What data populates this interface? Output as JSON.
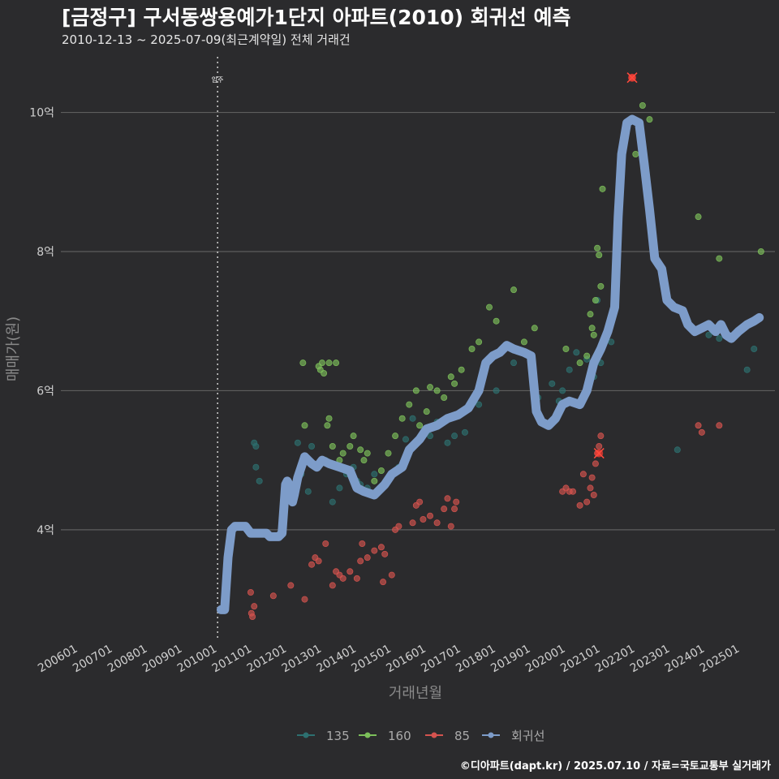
{
  "title": "[금정구] 구서동쌍용예가1단지 아파트(2010) 회귀선 예측",
  "subtitle": "2010-12-13 ~ 2025-07-09(최근계약일) 전체 거래건",
  "caption": "©디아파트(dapt.kr) / 2025.07.10 / 자료=국토교통부 실거래가",
  "chart_data": {
    "type": "scatter",
    "xlabel": "거래년월",
    "ylabel": "매매가(원)",
    "x_ticks": [
      "200601",
      "200701",
      "200801",
      "200901",
      "201001",
      "201101",
      "201201",
      "201301",
      "201401",
      "201501",
      "201601",
      "201701",
      "201801",
      "201901",
      "202001",
      "202101",
      "202201",
      "202301",
      "202401",
      "202501"
    ],
    "y_ticks": [
      {
        "v": 4,
        "label": "4억"
      },
      {
        "v": 6,
        "label": "6억"
      },
      {
        "v": 8,
        "label": "8억"
      },
      {
        "v": 10,
        "label": "10억"
      }
    ],
    "xlim": [
      2005.5,
      2026.0
    ],
    "ylim": [
      2.4,
      10.8
    ],
    "grid": "horizontal",
    "annotation": {
      "x": 2010.0,
      "label": "입주"
    },
    "legend_position": "bottom",
    "legend": [
      {
        "name": "135",
        "color": "#2d7070"
      },
      {
        "name": "160",
        "color": "#7cbf5a"
      },
      {
        "name": "85",
        "color": "#d4534f"
      },
      {
        "name": "회귀선",
        "color": "#7d9cc9"
      }
    ],
    "series": [
      {
        "name": "135",
        "color": "#2d7070",
        "points": [
          [
            2011.05,
            5.25
          ],
          [
            2011.1,
            5.2
          ],
          [
            2011.1,
            4.9
          ],
          [
            2011.2,
            4.7
          ],
          [
            2012.3,
            5.25
          ],
          [
            2012.4,
            4.8
          ],
          [
            2012.6,
            4.55
          ],
          [
            2012.7,
            5.2
          ],
          [
            2013.1,
            5.0
          ],
          [
            2013.3,
            4.4
          ],
          [
            2013.5,
            4.6
          ],
          [
            2013.7,
            4.8
          ],
          [
            2013.9,
            4.9
          ],
          [
            2014.0,
            4.7
          ],
          [
            2014.1,
            4.65
          ],
          [
            2014.3,
            4.6
          ],
          [
            2014.5,
            4.8
          ],
          [
            2014.7,
            4.6
          ],
          [
            2015.2,
            4.9
          ],
          [
            2015.4,
            5.3
          ],
          [
            2015.6,
            5.6
          ],
          [
            2016.1,
            5.35
          ],
          [
            2016.3,
            5.55
          ],
          [
            2016.6,
            5.25
          ],
          [
            2016.8,
            5.35
          ],
          [
            2017.1,
            5.4
          ],
          [
            2017.5,
            5.8
          ],
          [
            2018.0,
            6.0
          ],
          [
            2018.5,
            6.4
          ],
          [
            2019.2,
            5.9
          ],
          [
            2019.6,
            6.1
          ],
          [
            2019.8,
            5.85
          ],
          [
            2019.9,
            6.0
          ],
          [
            2020.1,
            6.3
          ],
          [
            2020.3,
            6.55
          ],
          [
            2020.6,
            6.45
          ],
          [
            2020.8,
            6.2
          ],
          [
            2020.9,
            7.3
          ],
          [
            2021.0,
            6.4
          ],
          [
            2021.3,
            6.7
          ],
          [
            2023.2,
            5.15
          ],
          [
            2024.1,
            6.8
          ],
          [
            2024.4,
            6.75
          ],
          [
            2025.2,
            6.3
          ],
          [
            2025.4,
            6.6
          ]
        ]
      },
      {
        "name": "160",
        "color": "#7cbf5a",
        "points": [
          [
            2012.45,
            6.4
          ],
          [
            2012.5,
            5.5
          ],
          [
            2012.9,
            6.35
          ],
          [
            2012.95,
            6.3
          ],
          [
            2013.0,
            6.4
          ],
          [
            2013.05,
            6.25
          ],
          [
            2013.2,
            6.4
          ],
          [
            2013.4,
            6.4
          ],
          [
            2013.2,
            5.6
          ],
          [
            2013.15,
            5.5
          ],
          [
            2013.3,
            5.2
          ],
          [
            2013.5,
            5.0
          ],
          [
            2013.6,
            5.1
          ],
          [
            2013.8,
            5.2
          ],
          [
            2013.9,
            5.35
          ],
          [
            2014.1,
            5.15
          ],
          [
            2014.2,
            5.0
          ],
          [
            2014.3,
            5.1
          ],
          [
            2014.5,
            4.7
          ],
          [
            2014.7,
            4.85
          ],
          [
            2014.9,
            5.1
          ],
          [
            2015.1,
            5.35
          ],
          [
            2015.3,
            5.6
          ],
          [
            2015.5,
            5.8
          ],
          [
            2015.7,
            6.0
          ],
          [
            2015.8,
            5.5
          ],
          [
            2016.0,
            5.7
          ],
          [
            2016.1,
            6.05
          ],
          [
            2016.3,
            6.0
          ],
          [
            2016.5,
            5.9
          ],
          [
            2016.7,
            6.2
          ],
          [
            2016.8,
            6.1
          ],
          [
            2017.0,
            6.3
          ],
          [
            2017.3,
            6.6
          ],
          [
            2017.5,
            6.7
          ],
          [
            2017.8,
            7.2
          ],
          [
            2018.0,
            7.0
          ],
          [
            2018.2,
            6.6
          ],
          [
            2018.5,
            7.45
          ],
          [
            2018.8,
            6.7
          ],
          [
            2019.1,
            6.9
          ],
          [
            2020.0,
            6.6
          ],
          [
            2020.4,
            6.4
          ],
          [
            2020.6,
            6.5
          ],
          [
            2020.7,
            7.1
          ],
          [
            2020.75,
            6.9
          ],
          [
            2020.8,
            6.8
          ],
          [
            2020.85,
            7.3
          ],
          [
            2020.9,
            8.05
          ],
          [
            2020.95,
            7.95
          ],
          [
            2021.0,
            7.5
          ],
          [
            2021.05,
            8.9
          ],
          [
            2022.0,
            9.4
          ],
          [
            2022.2,
            10.1
          ],
          [
            2022.4,
            9.9
          ],
          [
            2023.8,
            8.5
          ],
          [
            2024.4,
            7.9
          ],
          [
            2025.6,
            8.0
          ]
        ]
      },
      {
        "name": "85",
        "color": "#d4534f",
        "points": [
          [
            2010.95,
            3.1
          ],
          [
            2010.97,
            2.8
          ],
          [
            2011.0,
            2.75
          ],
          [
            2011.05,
            2.9
          ],
          [
            2011.6,
            3.05
          ],
          [
            2012.1,
            3.2
          ],
          [
            2012.5,
            3.0
          ],
          [
            2012.7,
            3.5
          ],
          [
            2012.8,
            3.6
          ],
          [
            2012.9,
            3.55
          ],
          [
            2013.1,
            3.8
          ],
          [
            2013.3,
            3.2
          ],
          [
            2013.4,
            3.4
          ],
          [
            2013.5,
            3.35
          ],
          [
            2013.6,
            3.3
          ],
          [
            2013.8,
            3.4
          ],
          [
            2014.0,
            3.3
          ],
          [
            2014.1,
            3.55
          ],
          [
            2014.15,
            3.8
          ],
          [
            2014.3,
            3.6
          ],
          [
            2014.5,
            3.7
          ],
          [
            2014.7,
            3.75
          ],
          [
            2014.75,
            3.25
          ],
          [
            2014.8,
            3.65
          ],
          [
            2015.0,
            3.35
          ],
          [
            2015.1,
            4.0
          ],
          [
            2015.2,
            4.05
          ],
          [
            2015.6,
            4.1
          ],
          [
            2015.7,
            4.35
          ],
          [
            2015.8,
            4.4
          ],
          [
            2015.9,
            4.15
          ],
          [
            2016.1,
            4.2
          ],
          [
            2016.3,
            4.1
          ],
          [
            2016.5,
            4.3
          ],
          [
            2016.6,
            4.45
          ],
          [
            2016.7,
            4.05
          ],
          [
            2016.8,
            4.3
          ],
          [
            2016.85,
            4.4
          ],
          [
            2019.9,
            4.55
          ],
          [
            2020.0,
            4.6
          ],
          [
            2020.1,
            4.55
          ],
          [
            2020.2,
            4.55
          ],
          [
            2020.4,
            4.35
          ],
          [
            2020.5,
            4.8
          ],
          [
            2020.6,
            4.4
          ],
          [
            2020.7,
            4.6
          ],
          [
            2020.75,
            4.75
          ],
          [
            2020.8,
            4.5
          ],
          [
            2020.85,
            4.95
          ],
          [
            2020.9,
            5.1
          ],
          [
            2020.95,
            5.2
          ],
          [
            2021.0,
            5.35
          ],
          [
            2021.9,
            10.5
          ],
          [
            2023.8,
            5.5
          ],
          [
            2023.9,
            5.4
          ],
          [
            2024.4,
            5.5
          ]
        ]
      }
    ],
    "highlights": [
      [
        2020.95,
        5.1
      ],
      [
        2021.9,
        10.5
      ]
    ],
    "regression": [
      [
        2010.1,
        2.85
      ],
      [
        2010.2,
        2.85
      ],
      [
        2010.3,
        3.6
      ],
      [
        2010.4,
        4.0
      ],
      [
        2010.5,
        4.05
      ],
      [
        2010.8,
        4.05
      ],
      [
        2010.95,
        3.95
      ],
      [
        2011.4,
        3.95
      ],
      [
        2011.5,
        3.9
      ],
      [
        2011.75,
        3.9
      ],
      [
        2011.85,
        3.95
      ],
      [
        2011.95,
        4.65
      ],
      [
        2012.0,
        4.7
      ],
      [
        2012.1,
        4.6
      ],
      [
        2012.15,
        4.4
      ],
      [
        2012.2,
        4.5
      ],
      [
        2012.3,
        4.75
      ],
      [
        2012.5,
        5.05
      ],
      [
        2012.7,
        4.95
      ],
      [
        2012.85,
        4.9
      ],
      [
        2013.0,
        5.0
      ],
      [
        2013.2,
        4.95
      ],
      [
        2013.5,
        4.9
      ],
      [
        2013.8,
        4.85
      ],
      [
        2014.0,
        4.6
      ],
      [
        2014.2,
        4.55
      ],
      [
        2014.5,
        4.5
      ],
      [
        2014.8,
        4.65
      ],
      [
        2015.0,
        4.8
      ],
      [
        2015.3,
        4.9
      ],
      [
        2015.5,
        5.15
      ],
      [
        2015.8,
        5.3
      ],
      [
        2016.0,
        5.45
      ],
      [
        2016.3,
        5.5
      ],
      [
        2016.6,
        5.6
      ],
      [
        2016.9,
        5.65
      ],
      [
        2017.2,
        5.75
      ],
      [
        2017.5,
        6.0
      ],
      [
        2017.7,
        6.4
      ],
      [
        2017.9,
        6.5
      ],
      [
        2018.1,
        6.55
      ],
      [
        2018.3,
        6.65
      ],
      [
        2018.5,
        6.6
      ],
      [
        2018.8,
        6.55
      ],
      [
        2019.0,
        6.5
      ],
      [
        2019.15,
        5.7
      ],
      [
        2019.3,
        5.55
      ],
      [
        2019.5,
        5.5
      ],
      [
        2019.7,
        5.6
      ],
      [
        2019.9,
        5.8
      ],
      [
        2020.1,
        5.85
      ],
      [
        2020.4,
        5.8
      ],
      [
        2020.6,
        6.0
      ],
      [
        2020.8,
        6.4
      ],
      [
        2021.0,
        6.6
      ],
      [
        2021.2,
        6.85
      ],
      [
        2021.4,
        7.2
      ],
      [
        2021.5,
        8.5
      ],
      [
        2021.6,
        9.4
      ],
      [
        2021.75,
        9.85
      ],
      [
        2021.9,
        9.9
      ],
      [
        2022.1,
        9.85
      ],
      [
        2022.25,
        9.25
      ],
      [
        2022.4,
        8.6
      ],
      [
        2022.55,
        7.9
      ],
      [
        2022.75,
        7.75
      ],
      [
        2022.9,
        7.3
      ],
      [
        2023.1,
        7.2
      ],
      [
        2023.35,
        7.15
      ],
      [
        2023.5,
        6.95
      ],
      [
        2023.7,
        6.85
      ],
      [
        2023.9,
        6.9
      ],
      [
        2024.1,
        6.95
      ],
      [
        2024.3,
        6.85
      ],
      [
        2024.45,
        6.95
      ],
      [
        2024.6,
        6.8
      ],
      [
        2024.75,
        6.75
      ],
      [
        2024.95,
        6.85
      ],
      [
        2025.2,
        6.95
      ],
      [
        2025.4,
        7.0
      ],
      [
        2025.55,
        7.05
      ]
    ]
  }
}
